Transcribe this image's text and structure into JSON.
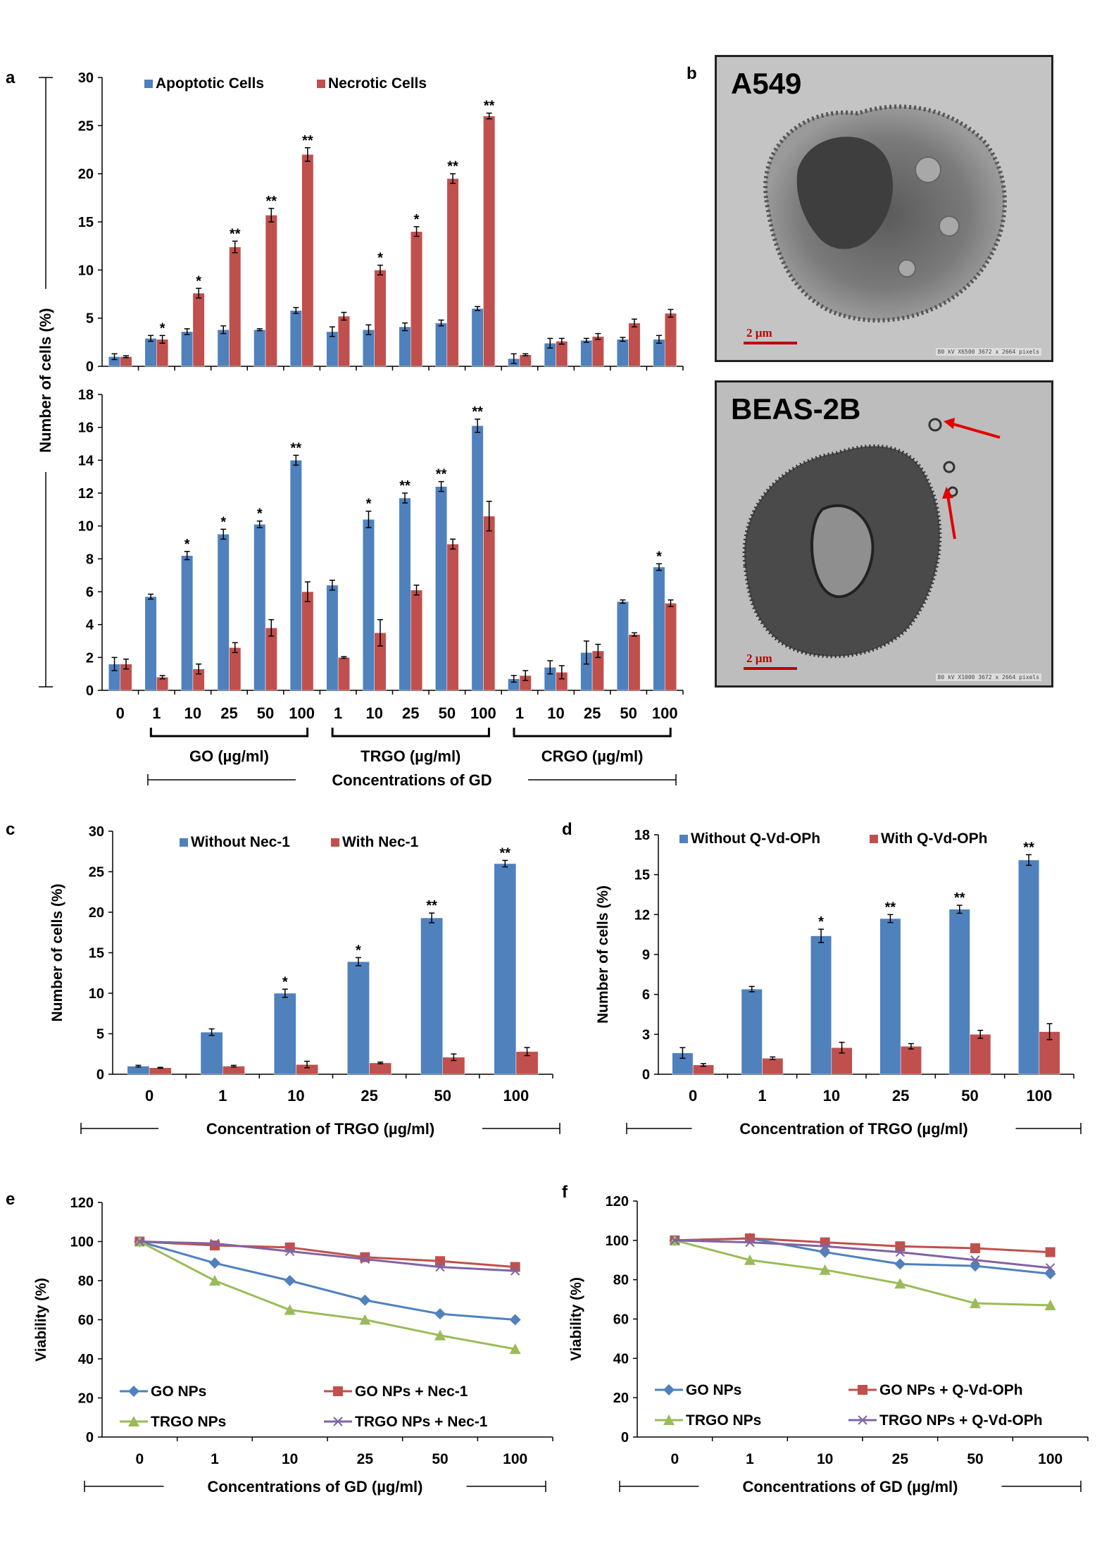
{
  "panels": {
    "a": "a",
    "b": "b",
    "c": "c",
    "d": "d",
    "e": "e",
    "f": "f"
  },
  "micrographs": {
    "top": {
      "label": "A549",
      "scale": "2 µm",
      "footer": "80 kV  X6500  3672 x 2664 pixels"
    },
    "bottom": {
      "label": "BEAS-2B",
      "scale": "2 µm",
      "footer": "80 kV  X1000  3672 x 2664 pixels"
    }
  },
  "colors": {
    "blue": "#4F81BD",
    "red": "#C0504D",
    "green": "#9BBB59",
    "purple": "#8064A2"
  },
  "chart_data": [
    {
      "id": "a-top",
      "type": "bar",
      "title": "",
      "ylabel": "Number of cells (%)",
      "ylim": [
        0,
        30
      ],
      "yticks": [
        0,
        5,
        10,
        15,
        20,
        25,
        30
      ],
      "legend": [
        "Apoptotic Cells",
        "Necrotic Cells"
      ],
      "categories": [
        "0",
        "1",
        "10",
        "25",
        "50",
        "100",
        "1",
        "10",
        "25",
        "50",
        "100",
        "1",
        "10",
        "25",
        "50",
        "100"
      ],
      "series": [
        {
          "name": "Apoptotic Cells",
          "values": [
            1.0,
            2.9,
            3.6,
            3.8,
            3.8,
            5.8,
            3.6,
            3.8,
            4.1,
            4.5,
            6.0,
            0.8,
            2.4,
            2.7,
            2.8,
            2.8
          ],
          "err": [
            0.3,
            0.3,
            0.3,
            0.4,
            0.1,
            0.3,
            0.5,
            0.5,
            0.4,
            0.3,
            0.2,
            0.5,
            0.5,
            0.2,
            0.2,
            0.4
          ]
        },
        {
          "name": "Necrotic Cells",
          "values": [
            1.0,
            2.8,
            7.6,
            12.4,
            15.7,
            22.0,
            5.2,
            10.0,
            14.0,
            19.5,
            26.0,
            1.2,
            2.6,
            3.1,
            4.5,
            5.5
          ],
          "err": [
            0.1,
            0.4,
            0.5,
            0.6,
            0.7,
            0.7,
            0.4,
            0.5,
            0.5,
            0.5,
            0.3,
            0.1,
            0.3,
            0.3,
            0.4,
            0.4
          ]
        }
      ],
      "annotations": {
        "1": [
          "",
          "*"
        ],
        "2": [
          "",
          "*"
        ],
        "3": [
          "",
          "**"
        ],
        "4": [
          "",
          "**"
        ],
        "5": [
          "",
          "**"
        ],
        "7": [
          "",
          "*"
        ],
        "8": [
          "",
          "*"
        ],
        "9": [
          "",
          "**"
        ],
        "10": [
          "",
          "**"
        ]
      }
    },
    {
      "id": "a-bottom",
      "type": "bar",
      "ylim": [
        0,
        18
      ],
      "yticks": [
        0,
        2,
        4,
        6,
        8,
        10,
        12,
        14,
        16,
        18
      ],
      "categories": [
        "0",
        "1",
        "10",
        "25",
        "50",
        "100",
        "1",
        "10",
        "25",
        "50",
        "100",
        "1",
        "10",
        "25",
        "50",
        "100"
      ],
      "series": [
        {
          "name": "Apoptotic Cells",
          "values": [
            1.6,
            5.7,
            8.2,
            9.5,
            10.1,
            14.0,
            6.4,
            10.4,
            11.7,
            12.4,
            16.1,
            0.7,
            1.4,
            2.3,
            5.4,
            7.5
          ],
          "err": [
            0.4,
            0.15,
            0.25,
            0.3,
            0.2,
            0.3,
            0.3,
            0.5,
            0.3,
            0.3,
            0.4,
            0.2,
            0.4,
            0.7,
            0.1,
            0.2
          ]
        },
        {
          "name": "Necrotic Cells",
          "values": [
            1.6,
            0.8,
            1.3,
            2.6,
            3.8,
            6.0,
            2.0,
            3.5,
            6.1,
            8.9,
            10.6,
            0.9,
            1.1,
            2.4,
            3.4,
            5.3
          ],
          "err": [
            0.3,
            0.1,
            0.3,
            0.3,
            0.5,
            0.6,
            0.05,
            0.8,
            0.3,
            0.3,
            0.9,
            0.3,
            0.4,
            0.4,
            0.1,
            0.2
          ]
        }
      ],
      "annotations": {
        "2": [
          "*",
          ""
        ],
        "3": [
          "*",
          ""
        ],
        "4": [
          "*",
          ""
        ],
        "5": [
          "**",
          ""
        ],
        "7": [
          "*",
          ""
        ],
        "8": [
          "**",
          ""
        ],
        "9": [
          "**",
          ""
        ],
        "10": [
          "**",
          ""
        ],
        "15": [
          "*",
          ""
        ]
      },
      "group_labels": [
        "GO (µg/ml)",
        "TRGO (µg/ml)",
        "CRGO (µg/ml)"
      ],
      "xlabel": "Concentrations of GD"
    },
    {
      "id": "c",
      "type": "bar",
      "ylabel": "Number of cells (%)",
      "ylim": [
        0,
        30
      ],
      "yticks": [
        0,
        5,
        10,
        15,
        20,
        25,
        30
      ],
      "categories": [
        "0",
        "1",
        "10",
        "25",
        "50",
        "100"
      ],
      "legend": [
        "Without Nec-1",
        "With Nec-1"
      ],
      "series": [
        {
          "name": "Without Nec-1",
          "values": [
            1.0,
            5.2,
            10.0,
            13.9,
            19.3,
            26.0
          ],
          "err": [
            0.1,
            0.4,
            0.5,
            0.5,
            0.6,
            0.4
          ]
        },
        {
          "name": "With Nec-1",
          "values": [
            0.8,
            1.0,
            1.2,
            1.4,
            2.1,
            2.8
          ],
          "err": [
            0.05,
            0.1,
            0.4,
            0.1,
            0.4,
            0.5
          ]
        }
      ],
      "annotations": {
        "2": [
          "*",
          ""
        ],
        "3": [
          "*",
          ""
        ],
        "4": [
          "**",
          ""
        ],
        "5": [
          "**",
          ""
        ]
      },
      "xlabel": "Concentration of TRGO (µg/ml)"
    },
    {
      "id": "d",
      "type": "bar",
      "ylabel": "Number of cells (%)",
      "ylim": [
        0,
        18
      ],
      "yticks": [
        0,
        3,
        6,
        9,
        12,
        15,
        18
      ],
      "categories": [
        "0",
        "1",
        "10",
        "25",
        "50",
        "100"
      ],
      "legend": [
        "Without Q-Vd-OPh",
        "With Q-Vd-OPh"
      ],
      "series": [
        {
          "name": "Without Q-Vd-OPh",
          "values": [
            1.6,
            6.4,
            10.4,
            11.7,
            12.4,
            16.1
          ],
          "err": [
            0.4,
            0.2,
            0.5,
            0.3,
            0.3,
            0.4
          ]
        },
        {
          "name": "With Q-Vd-OPh",
          "values": [
            0.7,
            1.2,
            2.0,
            2.1,
            3.0,
            3.2
          ],
          "err": [
            0.1,
            0.1,
            0.4,
            0.2,
            0.3,
            0.6
          ]
        }
      ],
      "annotations": {
        "2": [
          "*",
          ""
        ],
        "3": [
          "**",
          ""
        ],
        "4": [
          "**",
          ""
        ],
        "5": [
          "**",
          ""
        ]
      },
      "xlabel": "Concentration of TRGO (µg/ml)"
    },
    {
      "id": "e",
      "type": "line",
      "ylabel": "Viability (%)",
      "ylim": [
        0,
        120
      ],
      "yticks": [
        0,
        20,
        40,
        60,
        80,
        100,
        120
      ],
      "categories": [
        "0",
        "1",
        "10",
        "25",
        "50",
        "100"
      ],
      "series": [
        {
          "name": "GO NPs",
          "values": [
            100,
            89,
            80,
            70,
            63,
            60
          ],
          "marker": "diamond",
          "color": "#4F81BD"
        },
        {
          "name": "GO NPs + Nec-1",
          "values": [
            100,
            98,
            97,
            92,
            90,
            87
          ],
          "marker": "square",
          "color": "#C0504D"
        },
        {
          "name": "TRGO NPs",
          "values": [
            100,
            80,
            65,
            60,
            52,
            45
          ],
          "marker": "triangle",
          "color": "#9BBB59"
        },
        {
          "name": "TRGO NPs + Nec-1",
          "values": [
            100,
            99,
            95,
            91,
            87,
            85
          ],
          "marker": "x",
          "color": "#8064A2"
        }
      ],
      "xlabel": "Concentrations of GD (µg/ml)"
    },
    {
      "id": "f",
      "type": "line",
      "ylabel": "Viability (%)",
      "ylim": [
        0,
        120
      ],
      "yticks": [
        0,
        20,
        40,
        60,
        80,
        100,
        120
      ],
      "categories": [
        "0",
        "1",
        "10",
        "25",
        "50",
        "100"
      ],
      "series": [
        {
          "name": "GO NPs",
          "values": [
            100,
            101,
            94,
            88,
            87,
            83
          ],
          "marker": "diamond",
          "color": "#4F81BD"
        },
        {
          "name": "GO NPs + Q-Vd-OPh",
          "values": [
            100,
            101,
            99,
            97,
            96,
            94
          ],
          "marker": "square",
          "color": "#C0504D"
        },
        {
          "name": "TRGO NPs",
          "values": [
            100,
            90,
            85,
            78,
            68,
            67
          ],
          "marker": "triangle",
          "color": "#9BBB59"
        },
        {
          "name": "TRGO NPs + Q-Vd-OPh",
          "values": [
            100,
            99,
            97,
            94,
            90,
            86
          ],
          "marker": "x",
          "color": "#8064A2"
        }
      ],
      "xlabel": "Concentrations of GD (µg/ml)"
    }
  ]
}
